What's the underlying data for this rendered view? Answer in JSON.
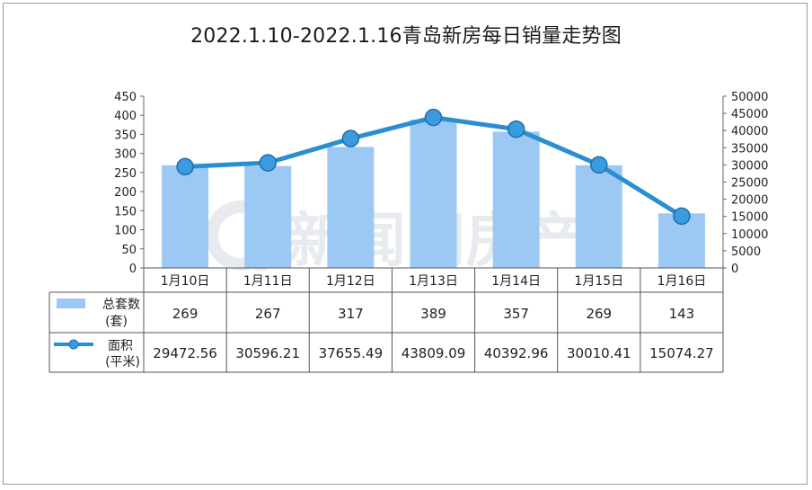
{
  "chart_data": {
    "type": "bar+line",
    "title": "2022.1.10-2022.1.16青岛新房每日销量走势图",
    "categories": [
      "1月10日",
      "1月11日",
      "1月12日",
      "1月13日",
      "1月14日",
      "1月15日",
      "1月16日"
    ],
    "series": [
      {
        "name": "总套数(套)",
        "legend_lines": [
          "总套数",
          "(套)"
        ],
        "kind": "bar",
        "axis": "left",
        "color": "#9cc8f4",
        "values": [
          269,
          267,
          317,
          389,
          357,
          269,
          143
        ],
        "labels": [
          "269",
          "267",
          "317",
          "389",
          "357",
          "269",
          "143"
        ]
      },
      {
        "name": "面积(平米)",
        "legend_lines": [
          "面积",
          "(平米)"
        ],
        "kind": "line",
        "axis": "right",
        "color": "#2a8fd0",
        "values": [
          29472.56,
          30596.21,
          37655.49,
          43809.09,
          40392.96,
          30010.41,
          15074.27
        ],
        "labels": [
          "29472.56",
          "30596.21",
          "37655.49",
          "43809.09",
          "40392.96",
          "30010.41",
          "15074.27"
        ]
      }
    ],
    "y_left": {
      "min": 0,
      "max": 450,
      "ticks": [
        "0",
        "50",
        "100",
        "150",
        "200",
        "250",
        "300",
        "350",
        "400",
        "450"
      ]
    },
    "y_right": {
      "min": 0,
      "max": 50000,
      "ticks": [
        "0",
        "5000",
        "10000",
        "15000",
        "20000",
        "25000",
        "30000",
        "35000",
        "40000",
        "45000",
        "50000"
      ]
    },
    "data_table": true,
    "watermark": "新闻网房产"
  }
}
